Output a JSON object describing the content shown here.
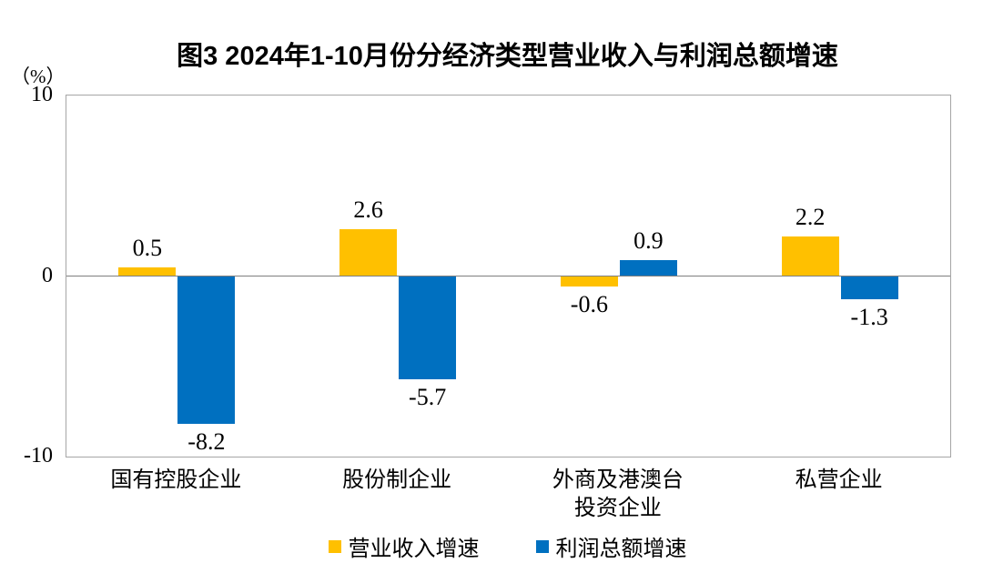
{
  "chart_data": {
    "type": "bar",
    "title": "图3  2024年1-10月份分经济类型营业收入与利润总额增速",
    "unit_label": "（%）",
    "categories": [
      "国有控股企业",
      "股份制企业",
      "外商及港澳台\n投资企业",
      "私营企业"
    ],
    "series": [
      {
        "name": "营业收入增速",
        "color": "#FFC000",
        "values": [
          0.5,
          2.6,
          -0.6,
          2.2
        ]
      },
      {
        "name": "利润总额增速",
        "color": "#0070C0",
        "values": [
          -8.2,
          -5.7,
          0.9,
          -1.3
        ]
      }
    ],
    "ylim": [
      -10,
      10
    ],
    "yticks": [
      "10",
      "0",
      "-10"
    ],
    "grid": false,
    "legend_position": "bottom",
    "value_labels_shown": true,
    "axis_border_color": "#a6a6a6",
    "zero_line_color": "#7f7f7f"
  }
}
